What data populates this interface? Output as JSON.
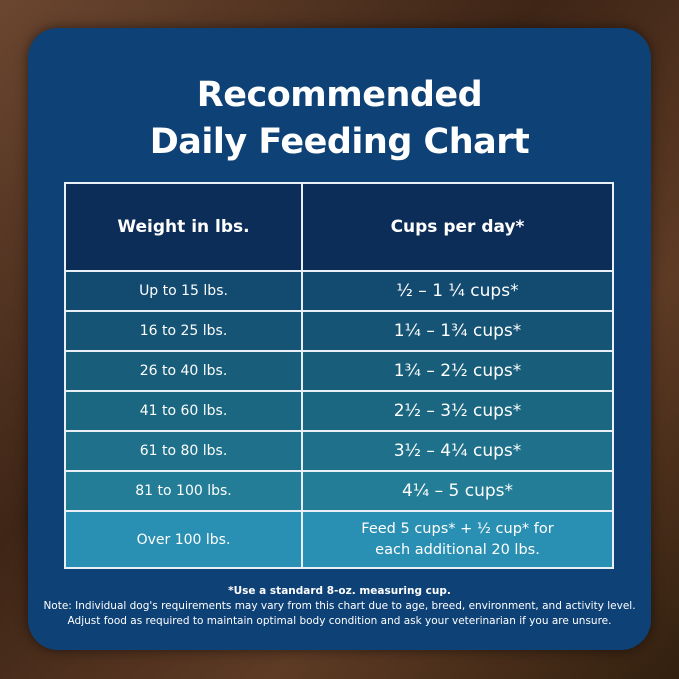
{
  "title_lines": [
    "Recommended",
    "Daily Feeding Chart"
  ],
  "table": {
    "headers": [
      "Weight in lbs.",
      "Cups per day*"
    ],
    "rows": [
      {
        "weight": "Up to 15 lbs.",
        "cups": "½ – 1 ¼ cups*"
      },
      {
        "weight": "16 to 25 lbs.",
        "cups": "1¼ – 1¾  cups*"
      },
      {
        "weight": "26 to 40 lbs.",
        "cups": "1¾ – 2½ cups*"
      },
      {
        "weight": "41 to 60 lbs.",
        "cups": "2½ – 3½ cups*"
      },
      {
        "weight": "61 to 80 lbs.",
        "cups": "3½ – 4¼ cups*"
      },
      {
        "weight": "81 to 100 lbs.",
        "cups": "4¼ – 5 cups*"
      },
      {
        "weight": "Over 100 lbs.",
        "cups_lines": [
          "Feed 5 cups* + ½ cup* for",
          "each additional 20 lbs."
        ]
      }
    ],
    "row_colors": [
      "#124a70",
      "#155475",
      "#185e7b",
      "#1b6782",
      "#1f718b",
      "#237d97",
      "#2a90b3"
    ]
  },
  "notes": {
    "measure": "*Use a standard 8-oz. measuring cup.",
    "line1": "Note: Individual dog's requirements may vary from this chart due to age, breed, environment, and activity level.",
    "line2": "Adjust food as required to maintain optimal body condition and ask your veterinarian if you are unsure."
  }
}
